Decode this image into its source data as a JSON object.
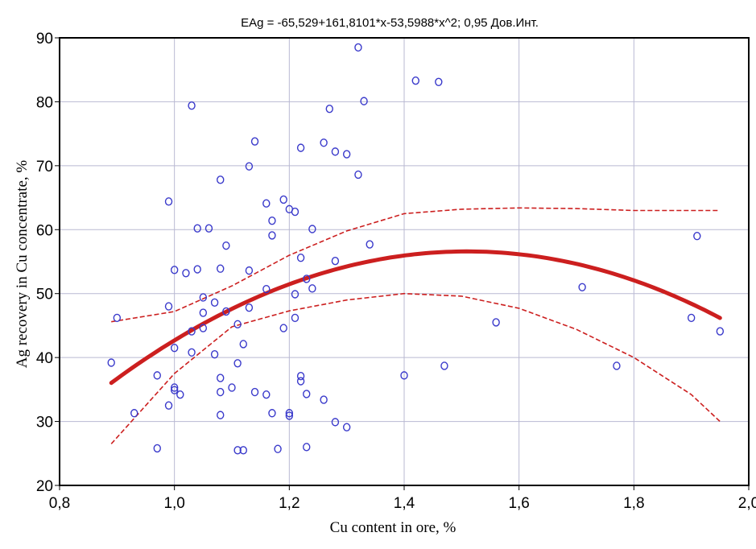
{
  "chart_data": {
    "type": "scatter",
    "title": "EAg = -65,529+161,8101*x-53,5988*x^2; 0,95 Дов.Инт.",
    "xlabel": "Cu content in ore, %",
    "ylabel": "Ag recovery in Cu concentrate, %",
    "xlim": [
      0.8,
      2.0
    ],
    "ylim": [
      20,
      90
    ],
    "xticks": [
      0.8,
      1.0,
      1.2,
      1.4,
      1.6,
      1.8,
      2.0
    ],
    "xtick_labels": [
      "0,8",
      "1,0",
      "1,2",
      "1,4",
      "1,6",
      "1,8",
      "2,0"
    ],
    "yticks": [
      20,
      30,
      40,
      50,
      60,
      70,
      80,
      90
    ],
    "ytick_labels": [
      "20",
      "30",
      "40",
      "50",
      "60",
      "70",
      "80",
      "90"
    ],
    "grid": true,
    "fit": {
      "kind": "quadratic",
      "coefficients": [
        -65.529,
        161.8101,
        -53.5988
      ],
      "x_range": [
        0.89,
        1.95
      ],
      "color": "#cc1f1f",
      "confidence_level": 0.95,
      "upper_band": {
        "x": [
          0.89,
          1.0,
          1.1,
          1.2,
          1.3,
          1.4,
          1.5,
          1.6,
          1.7,
          1.8,
          1.95
        ],
        "y": [
          45.6,
          47.2,
          51.2,
          56.0,
          59.8,
          62.5,
          63.2,
          63.4,
          63.3,
          63.0,
          63.0
        ]
      },
      "lower_band": {
        "x": [
          0.89,
          1.0,
          1.1,
          1.2,
          1.3,
          1.4,
          1.5,
          1.6,
          1.7,
          1.8,
          1.9,
          1.95
        ],
        "y": [
          26.5,
          37.5,
          44.8,
          47.3,
          49.0,
          50.0,
          49.6,
          47.7,
          44.4,
          40.0,
          34.2,
          30.0
        ]
      }
    },
    "marker_color": "#3a3acb",
    "points": [
      {
        "x": 0.89,
        "y": 39.2
      },
      {
        "x": 0.9,
        "y": 46.2
      },
      {
        "x": 0.93,
        "y": 31.3
      },
      {
        "x": 0.97,
        "y": 37.2
      },
      {
        "x": 0.97,
        "y": 25.8
      },
      {
        "x": 0.99,
        "y": 64.4
      },
      {
        "x": 0.99,
        "y": 48.0
      },
      {
        "x": 0.99,
        "y": 32.5
      },
      {
        "x": 1.0,
        "y": 53.7
      },
      {
        "x": 1.0,
        "y": 41.5
      },
      {
        "x": 1.0,
        "y": 35.3
      },
      {
        "x": 1.0,
        "y": 34.9
      },
      {
        "x": 1.01,
        "y": 34.2
      },
      {
        "x": 1.02,
        "y": 53.2
      },
      {
        "x": 1.03,
        "y": 79.4
      },
      {
        "x": 1.03,
        "y": 44.1
      },
      {
        "x": 1.03,
        "y": 40.8
      },
      {
        "x": 1.04,
        "y": 60.2
      },
      {
        "x": 1.04,
        "y": 53.8
      },
      {
        "x": 1.05,
        "y": 49.4
      },
      {
        "x": 1.05,
        "y": 47.0
      },
      {
        "x": 1.05,
        "y": 44.6
      },
      {
        "x": 1.06,
        "y": 60.2
      },
      {
        "x": 1.07,
        "y": 48.6
      },
      {
        "x": 1.07,
        "y": 40.5
      },
      {
        "x": 1.08,
        "y": 67.8
      },
      {
        "x": 1.08,
        "y": 53.9
      },
      {
        "x": 1.08,
        "y": 36.8
      },
      {
        "x": 1.08,
        "y": 34.6
      },
      {
        "x": 1.08,
        "y": 31.0
      },
      {
        "x": 1.09,
        "y": 57.5
      },
      {
        "x": 1.09,
        "y": 47.2
      },
      {
        "x": 1.1,
        "y": 35.3
      },
      {
        "x": 1.11,
        "y": 45.2
      },
      {
        "x": 1.11,
        "y": 39.1
      },
      {
        "x": 1.11,
        "y": 25.5
      },
      {
        "x": 1.12,
        "y": 42.1
      },
      {
        "x": 1.12,
        "y": 25.5
      },
      {
        "x": 1.13,
        "y": 69.9
      },
      {
        "x": 1.13,
        "y": 53.6
      },
      {
        "x": 1.13,
        "y": 47.8
      },
      {
        "x": 1.14,
        "y": 73.8
      },
      {
        "x": 1.14,
        "y": 34.6
      },
      {
        "x": 1.16,
        "y": 64.1
      },
      {
        "x": 1.16,
        "y": 50.7
      },
      {
        "x": 1.16,
        "y": 34.2
      },
      {
        "x": 1.17,
        "y": 61.4
      },
      {
        "x": 1.17,
        "y": 59.1
      },
      {
        "x": 1.17,
        "y": 31.3
      },
      {
        "x": 1.18,
        "y": 25.7
      },
      {
        "x": 1.19,
        "y": 64.7
      },
      {
        "x": 1.19,
        "y": 44.6
      },
      {
        "x": 1.2,
        "y": 63.2
      },
      {
        "x": 1.2,
        "y": 31.3
      },
      {
        "x": 1.2,
        "y": 30.9
      },
      {
        "x": 1.21,
        "y": 62.8
      },
      {
        "x": 1.21,
        "y": 49.9
      },
      {
        "x": 1.21,
        "y": 46.2
      },
      {
        "x": 1.22,
        "y": 72.8
      },
      {
        "x": 1.22,
        "y": 55.6
      },
      {
        "x": 1.22,
        "y": 37.1
      },
      {
        "x": 1.22,
        "y": 36.3
      },
      {
        "x": 1.23,
        "y": 52.3
      },
      {
        "x": 1.23,
        "y": 34.3
      },
      {
        "x": 1.23,
        "y": 26.0
      },
      {
        "x": 1.24,
        "y": 60.1
      },
      {
        "x": 1.24,
        "y": 50.8
      },
      {
        "x": 1.26,
        "y": 73.6
      },
      {
        "x": 1.26,
        "y": 33.4
      },
      {
        "x": 1.27,
        "y": 78.9
      },
      {
        "x": 1.28,
        "y": 72.2
      },
      {
        "x": 1.28,
        "y": 55.1
      },
      {
        "x": 1.28,
        "y": 29.9
      },
      {
        "x": 1.3,
        "y": 71.8
      },
      {
        "x": 1.3,
        "y": 29.1
      },
      {
        "x": 1.32,
        "y": 88.5
      },
      {
        "x": 1.32,
        "y": 68.6
      },
      {
        "x": 1.33,
        "y": 80.1
      },
      {
        "x": 1.34,
        "y": 57.7
      },
      {
        "x": 1.4,
        "y": 37.2
      },
      {
        "x": 1.42,
        "y": 83.3
      },
      {
        "x": 1.46,
        "y": 83.1
      },
      {
        "x": 1.47,
        "y": 38.7
      },
      {
        "x": 1.56,
        "y": 45.5
      },
      {
        "x": 1.71,
        "y": 51.0
      },
      {
        "x": 1.77,
        "y": 38.7
      },
      {
        "x": 1.9,
        "y": 46.2
      },
      {
        "x": 1.91,
        "y": 59.0
      },
      {
        "x": 1.95,
        "y": 44.1
      }
    ]
  }
}
